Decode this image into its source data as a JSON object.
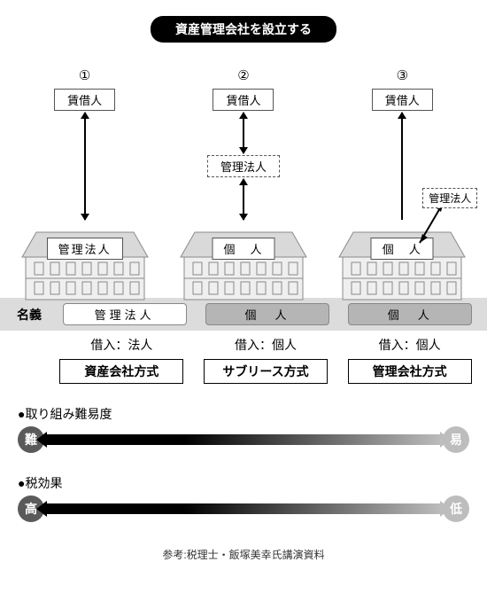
{
  "title": "資産管理会社を設立する",
  "columns": [
    {
      "num": "①",
      "top_box": "賃借人",
      "mid_box": null,
      "roof_box": "管理法人",
      "side_box": null,
      "owner": "管理法人",
      "owner_style": "light",
      "loan": "借入：法人",
      "method": "資産会社方式",
      "arrows": [
        "both_long"
      ]
    },
    {
      "num": "②",
      "top_box": "賃借人",
      "mid_box": "管理法人",
      "roof_box": "個　人",
      "side_box": null,
      "owner": "個　人",
      "owner_style": "dark",
      "loan": "借入：個人",
      "method": "サブリース方式",
      "arrows": [
        "both_short",
        "both_short"
      ]
    },
    {
      "num": "③",
      "top_box": "賃借人",
      "mid_box": null,
      "roof_box": "個　人",
      "side_box": "管理法人",
      "owner": "個　人",
      "owner_style": "dark",
      "loan": "借入：個人",
      "method": "管理会社方式",
      "arrows": [
        "up_long"
      ]
    }
  ],
  "row_label": "名義",
  "scales": [
    {
      "title": "●取り組み難易度",
      "left": "難",
      "right": "易",
      "left_color": "#5a5a5a",
      "right_color": "#bdbdbd"
    },
    {
      "title": "●税効果",
      "left": "高",
      "right": "低",
      "left_color": "#5a5a5a",
      "right_color": "#bdbdbd"
    }
  ],
  "footnote": "参考:税理士・飯塚美幸氏講演資料",
  "colors": {
    "building_stroke": "#8a8a8a",
    "building_fill": "#d9d9d9",
    "building_body": "#efefef"
  }
}
